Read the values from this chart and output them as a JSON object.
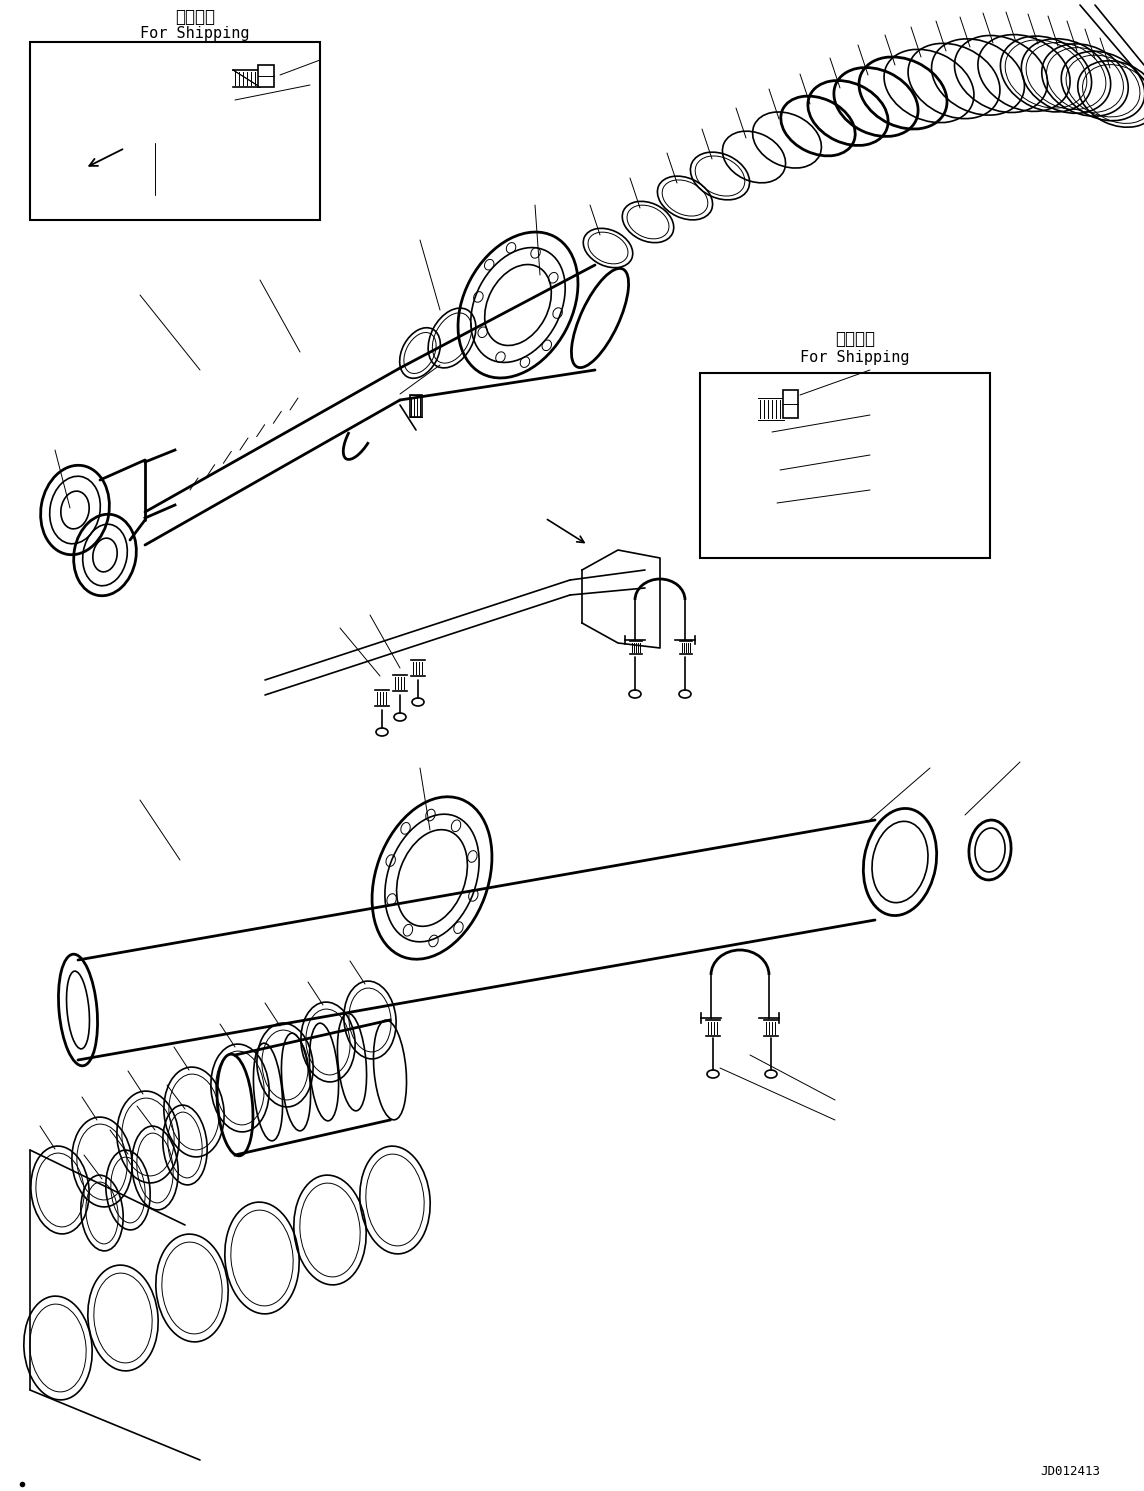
{
  "bg_color": "#ffffff",
  "line_color": "#000000",
  "lw": 1.2,
  "tlw": 0.7,
  "thw": 2.0,
  "fig_width": 11.44,
  "fig_height": 14.91,
  "doc_number": "JD012413",
  "label1_jp": "運搜部品",
  "label1_en": "For Shipping",
  "label2_jp": "運搜部品",
  "label2_en": "For Shipping"
}
